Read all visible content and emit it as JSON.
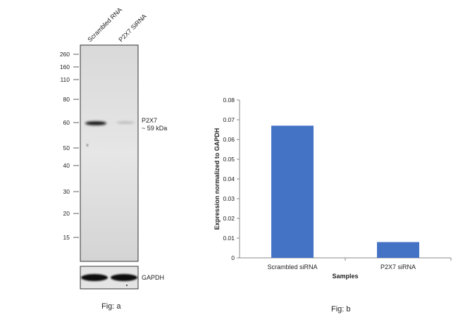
{
  "figure_a": {
    "lane_labels": [
      "Scrambled RNA",
      "P2X7 SiRNA"
    ],
    "mw_markers": [
      "260",
      "160",
      "110",
      "80",
      "60",
      "50",
      "40",
      "30",
      "20",
      "15"
    ],
    "band_label_line1": "P2X7",
    "band_label_line2": "~ 59 kDa",
    "loading_control_label": "GAPDH",
    "caption": "Fig: a"
  },
  "figure_b": {
    "caption": "Fig: b"
  },
  "chart_data": {
    "type": "bar",
    "categories": [
      "Scrambled siRNA",
      "P2X7 siRNA"
    ],
    "values": [
      0.067,
      0.008
    ],
    "title": "",
    "xlabel": "Samples",
    "ylabel": "Expression normalized to GAPDH",
    "ylim": [
      0,
      0.08
    ],
    "yticks": [
      "0",
      "0.01",
      "0.02",
      "0.03",
      "0.04",
      "0.05",
      "0.06",
      "0.07",
      "0.08"
    ],
    "grid": false,
    "legend": "none",
    "bar_color": "#4472C4"
  }
}
